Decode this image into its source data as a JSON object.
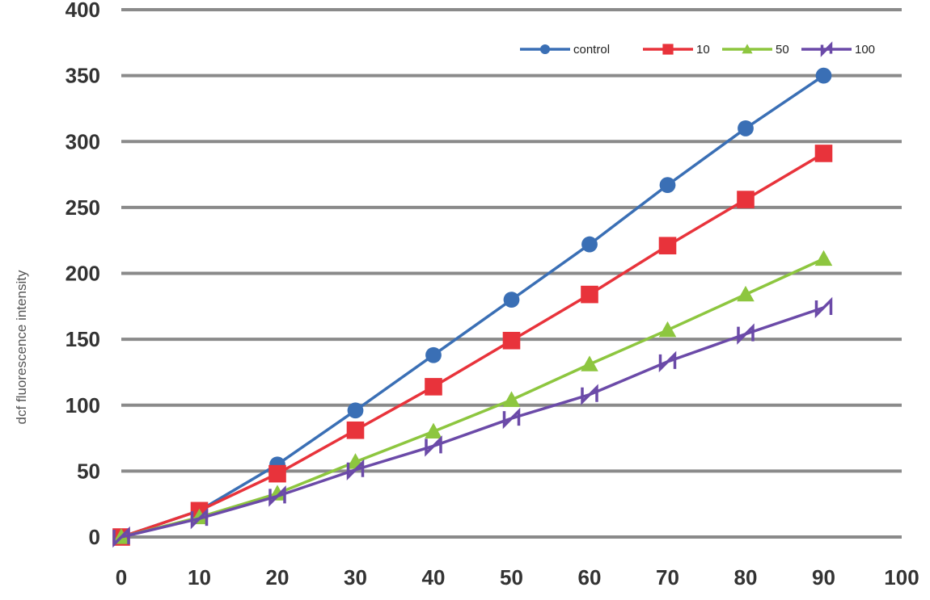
{
  "chart_data": {
    "type": "line",
    "title": "",
    "xlabel": "",
    "ylabel": "dcf fluorescence intensity",
    "xlim": [
      0,
      100
    ],
    "ylim": [
      0,
      400
    ],
    "xticks": [
      "0",
      "10",
      "20",
      "30",
      "40",
      "50",
      "60",
      "70",
      "80",
      "90",
      "100"
    ],
    "yticks": [
      "0",
      "50",
      "100",
      "150",
      "200",
      "250",
      "300",
      "350",
      "400"
    ],
    "grid": "horizontal",
    "legend_position": "top-right",
    "x": [
      0,
      10,
      20,
      30,
      40,
      50,
      60,
      70,
      80,
      90
    ],
    "series": [
      {
        "name": "control",
        "color": "#3a6fb5",
        "marker": "circle",
        "values": [
          0,
          20,
          55,
          96,
          138,
          180,
          222,
          267,
          310,
          350
        ]
      },
      {
        "name": "10",
        "color": "#e8333b",
        "marker": "square",
        "values": [
          0,
          20,
          48,
          81,
          114,
          149,
          184,
          221,
          256,
          291
        ]
      },
      {
        "name": "50",
        "color": "#8dc63f",
        "marker": "triangle",
        "values": [
          0,
          15,
          33,
          57,
          80,
          104,
          131,
          157,
          184,
          211
        ]
      },
      {
        "name": "100",
        "color": "#6b4aa8",
        "marker": "bowtie",
        "values": [
          0,
          14,
          31,
          51,
          69,
          90,
          108,
          133,
          154,
          174
        ]
      }
    ]
  }
}
